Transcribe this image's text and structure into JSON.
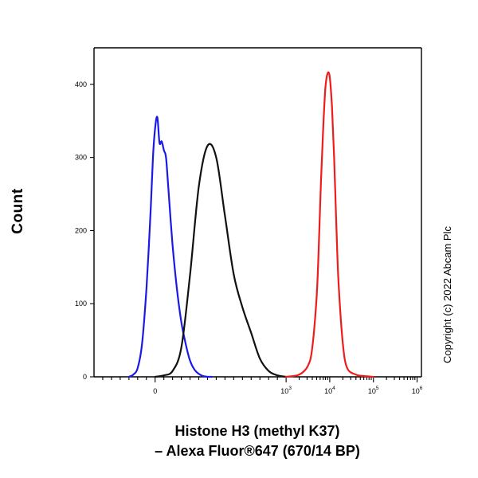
{
  "chart_data": {
    "type": "line",
    "title": "",
    "xlabel_lines": [
      "Histone H3 (methyl K37)",
      "– Alexa Fluor®647 (670/14 BP)"
    ],
    "ylabel": "Count",
    "x_scale": "biexponential",
    "xlim": [
      -1.4,
      6.1
    ],
    "ylim": [
      0,
      450
    ],
    "y_ticks": [
      0,
      100,
      200,
      300,
      400
    ],
    "x_ticks": [
      {
        "pos": 0,
        "base": "0",
        "exp": ""
      },
      {
        "pos": 3,
        "base": "10",
        "exp": "3"
      },
      {
        "pos": 4,
        "base": "10",
        "exp": "4"
      },
      {
        "pos": 5,
        "base": "10",
        "exp": "5"
      },
      {
        "pos": 6,
        "base": "10",
        "exp": "6"
      }
    ],
    "minor_ticks": [
      -1.2,
      -1.0,
      -0.8,
      -0.6,
      -0.4,
      -0.2,
      0.2,
      0.4,
      0.6,
      0.8,
      1.0,
      1.2,
      1.4,
      1.6,
      1.8,
      2.0,
      2.2,
      2.4,
      2.6,
      2.8,
      3.3,
      3.48,
      3.6,
      3.7,
      3.78,
      3.85,
      3.9,
      3.95,
      4.3,
      4.48,
      4.6,
      4.7,
      4.78,
      4.85,
      4.9,
      4.95,
      5.3,
      5.48,
      5.6,
      5.7,
      5.78,
      5.85,
      5.9,
      5.95
    ],
    "series": [
      {
        "name": "blue",
        "color": "#1a1ae6",
        "x": [
          -0.6,
          -0.5,
          -0.4,
          -0.3,
          -0.2,
          -0.1,
          -0.05,
          0.0,
          0.05,
          0.1,
          0.15,
          0.2,
          0.25,
          0.3,
          0.4,
          0.5,
          0.6,
          0.7,
          0.8,
          0.9,
          1.0,
          1.1,
          1.2,
          1.3
        ],
        "y": [
          0,
          3,
          12,
          45,
          120,
          230,
          300,
          340,
          355,
          320,
          322,
          310,
          300,
          260,
          180,
          120,
          75,
          45,
          22,
          10,
          4,
          1,
          0,
          0
        ]
      },
      {
        "name": "black",
        "color": "#111111",
        "x": [
          0.0,
          0.2,
          0.4,
          0.6,
          0.8,
          1.0,
          1.2,
          1.4,
          1.6,
          1.8,
          2.0,
          2.2,
          2.4,
          2.6,
          2.8,
          3.0
        ],
        "y": [
          0,
          2,
          8,
          40,
          140,
          260,
          316,
          300,
          220,
          140,
          95,
          60,
          25,
          8,
          2,
          0
        ]
      },
      {
        "name": "red",
        "color": "#ee1c1c",
        "x": [
          3.0,
          3.3,
          3.5,
          3.6,
          3.7,
          3.75,
          3.8,
          3.85,
          3.9,
          3.95,
          4.0,
          4.05,
          4.1,
          4.15,
          4.2,
          4.3,
          4.4,
          4.6,
          4.8,
          5.0
        ],
        "y": [
          0,
          3,
          15,
          40,
          110,
          180,
          270,
          340,
          395,
          415,
          410,
          370,
          300,
          210,
          130,
          45,
          12,
          3,
          1,
          0
        ]
      }
    ]
  },
  "copyright": "Copyright (c) 2022 Abcam Plc"
}
